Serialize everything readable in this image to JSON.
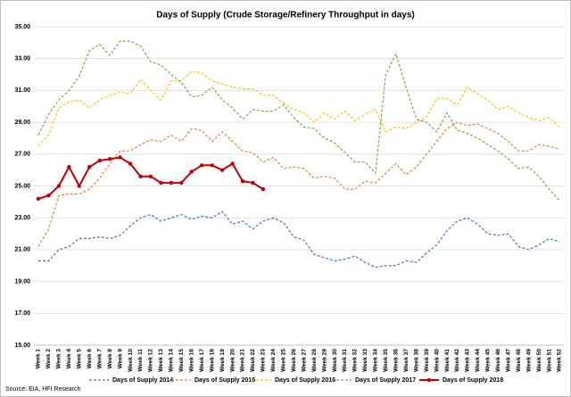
{
  "chart_data": {
    "type": "line",
    "title": "Days of Supply (Crude Storage/Refinery Throughput in days)",
    "source": "Source: EIA, HFI Research",
    "categories": [
      "Week 1",
      "Week 2",
      "Week 3",
      "Week 4",
      "Week 5",
      "Week 6",
      "Week 7",
      "Week 8",
      "Week 9",
      "Week 10",
      "Week 11",
      "Week 12",
      "Week 13",
      "Week 14",
      "Week 15",
      "Week 16",
      "Week 17",
      "Week 18",
      "Week 19",
      "Week 20",
      "Week 21",
      "Week 22",
      "Week 23",
      "Week 24",
      "Week 25",
      "Week 26",
      "Week 27",
      "Week 28",
      "Week 29",
      "Week 30",
      "Week 31",
      "Week 32",
      "Week 33",
      "Week 34",
      "Week 35",
      "Week 36",
      "Week 37",
      "Week 38",
      "Week 39",
      "Week 40",
      "Week 41",
      "Week 42",
      "Week 43",
      "Week 44",
      "Week 45",
      "Week 46",
      "Week 47",
      "Week 48",
      "Week 49",
      "Week 50",
      "Week 51",
      "Week 52"
    ],
    "ylim": [
      15,
      35
    ],
    "yticks": [
      {
        "value": 15,
        "label": "15.00"
      },
      {
        "value": 17,
        "label": "17.00"
      },
      {
        "value": 19,
        "label": "19.00"
      },
      {
        "value": 21,
        "label": "21.00"
      },
      {
        "value": 23,
        "label": "23.00"
      },
      {
        "value": 25,
        "label": "25.00"
      },
      {
        "value": 27,
        "label": "27.00"
      },
      {
        "value": 29,
        "label": "29.00"
      },
      {
        "value": 31,
        "label": "31.00"
      },
      {
        "value": 33,
        "label": "33.00"
      },
      {
        "value": 35,
        "label": "35.00"
      }
    ],
    "grid": true,
    "legend": "bottom",
    "series": [
      {
        "name": "Days of Supply 2014",
        "color": "#4472c4",
        "line_style": "dashed",
        "markers": false,
        "values": [
          20.3,
          20.3,
          21.0,
          21.2,
          21.7,
          21.7,
          21.8,
          21.7,
          21.9,
          22.5,
          23.0,
          23.2,
          22.8,
          23.0,
          23.2,
          22.9,
          23.1,
          23.0,
          23.4,
          22.6,
          22.8,
          22.3,
          22.8,
          23.0,
          22.7,
          21.8,
          21.6,
          20.7,
          20.5,
          20.3,
          20.4,
          20.6,
          20.2,
          19.9,
          20.0,
          20.0,
          20.3,
          20.2,
          20.8,
          21.3,
          22.2,
          22.8,
          23.0,
          22.6,
          22.0,
          21.9,
          22.0,
          21.2,
          21.0,
          21.3,
          21.7,
          21.5
        ]
      },
      {
        "name": "Days of Supply 2015",
        "color": "#ed7d31",
        "line_style": "dashed",
        "markers": false,
        "values": [
          21.2,
          22.3,
          24.4,
          24.5,
          24.5,
          24.8,
          25.5,
          26.4,
          27.2,
          27.2,
          27.6,
          27.9,
          27.8,
          28.2,
          27.8,
          28.6,
          28.5,
          27.8,
          28.4,
          27.8,
          27.2,
          27.1,
          26.5,
          26.8,
          26.1,
          26.2,
          26.1,
          25.5,
          25.6,
          25.5,
          24.8,
          24.8,
          25.3,
          25.2,
          25.8,
          26.4,
          25.7,
          26.2,
          27.0,
          27.8,
          28.6,
          29.0,
          28.8,
          28.9,
          28.6,
          28.3,
          27.8,
          27.2,
          27.2,
          27.6,
          27.5,
          27.3
        ]
      },
      {
        "name": "Days of Supply 2016",
        "color": "#ffc000",
        "line_style": "dashed",
        "markers": false,
        "values": [
          27.5,
          28.2,
          29.9,
          30.3,
          30.4,
          29.9,
          30.4,
          30.7,
          30.9,
          30.8,
          31.7,
          31.0,
          30.4,
          31.6,
          31.6,
          32.2,
          32.1,
          31.6,
          31.4,
          31.2,
          31.1,
          31.1,
          30.7,
          30.7,
          30.2,
          29.8,
          29.6,
          29.0,
          29.6,
          29.2,
          29.7,
          29.1,
          29.5,
          29.8,
          28.4,
          28.7,
          28.6,
          29.0,
          29.3,
          30.5,
          30.5,
          30.1,
          31.2,
          30.8,
          30.4,
          29.8,
          30.0,
          29.6,
          29.3,
          29.1,
          29.3,
          28.7
        ]
      },
      {
        "name": "Days of Supply 2017",
        "color": "#70ad47",
        "line_style": "dashed",
        "markers": false,
        "values": [
          28.2,
          29.5,
          30.4,
          31.0,
          31.9,
          33.5,
          33.9,
          33.2,
          34.1,
          34.1,
          33.8,
          32.8,
          32.6,
          32.0,
          31.5,
          30.6,
          30.7,
          31.2,
          30.4,
          29.9,
          29.2,
          29.8,
          29.7,
          29.7,
          30.1,
          29.3,
          28.7,
          28.6,
          28.0,
          27.7,
          27.1,
          26.5,
          26.5,
          25.8,
          32.0,
          33.3,
          31.2,
          29.2,
          29.0,
          28.4,
          29.6,
          28.5,
          28.3,
          28.0,
          27.6,
          27.2,
          26.7,
          26.1,
          26.2,
          25.6,
          24.8,
          24.1
        ]
      },
      {
        "name": "Days of Supply 2018",
        "color": "#c00000",
        "line_style": "solid",
        "markers": true,
        "values": [
          24.2,
          24.4,
          25.0,
          26.2,
          25.0,
          26.2,
          26.6,
          26.7,
          26.8,
          26.4,
          25.6,
          25.6,
          25.2,
          25.2,
          25.2,
          25.9,
          26.3,
          26.3,
          26.0,
          26.4,
          25.3,
          25.2,
          24.8,
          null,
          null,
          null,
          null,
          null,
          null,
          null,
          null,
          null,
          null,
          null,
          null,
          null,
          null,
          null,
          null,
          null,
          null,
          null,
          null,
          null,
          null,
          null,
          null,
          null,
          null,
          null,
          null,
          null
        ]
      }
    ]
  }
}
